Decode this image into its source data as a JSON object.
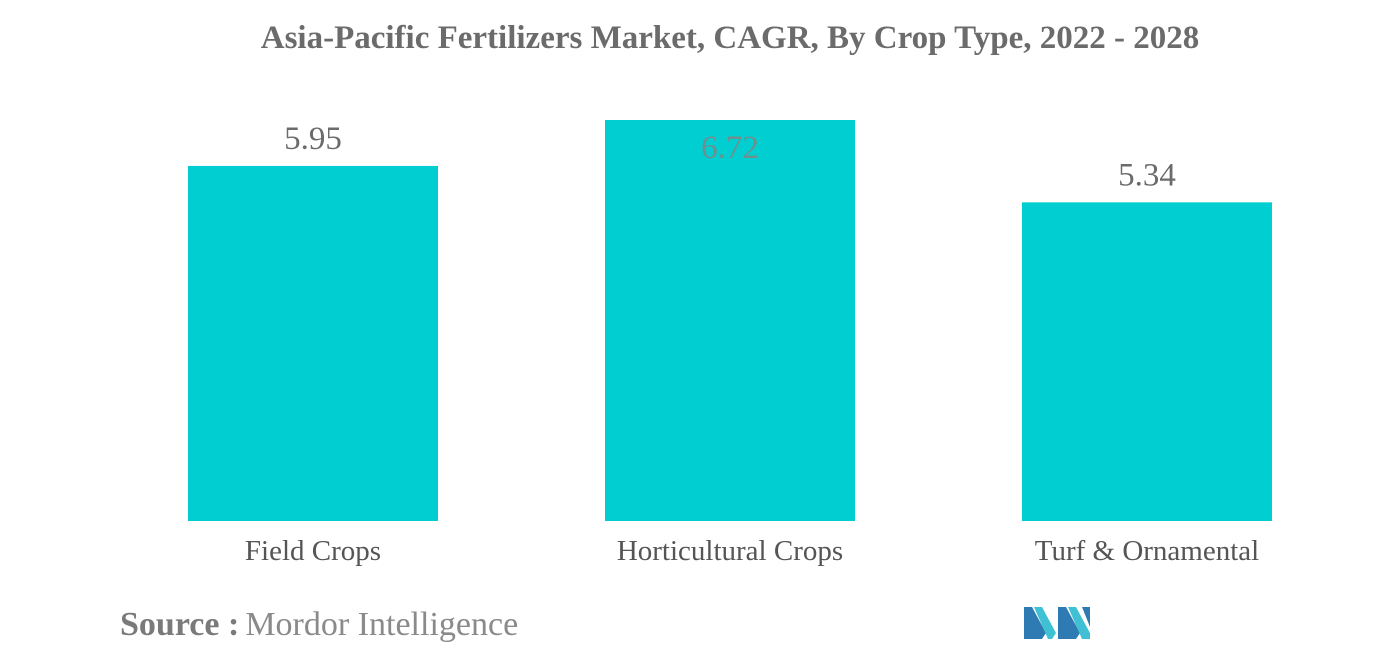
{
  "chart_data": {
    "type": "bar",
    "title": "Asia-Pacific Fertilizers Market, CAGR, By Crop Type, 2022 - 2028",
    "categories": [
      "Field Crops",
      "Horticultural Crops",
      "Turf & Ornamental"
    ],
    "values": [
      5.95,
      6.72,
      5.34
    ],
    "value_labels": [
      "5.95",
      "6.72",
      "5.34"
    ],
    "xlabel": "",
    "ylabel": "",
    "ylim": [
      0,
      6.72
    ],
    "grid": false,
    "legend": "none",
    "bar_color": "#00CED1"
  },
  "footer": {
    "source_label": "Source :",
    "source_value": "Mordor Intelligence"
  },
  "logo": {
    "icon": "mordor-intelligence-logo",
    "colors": [
      "#2E7BB4",
      "#3FC1D3"
    ]
  }
}
